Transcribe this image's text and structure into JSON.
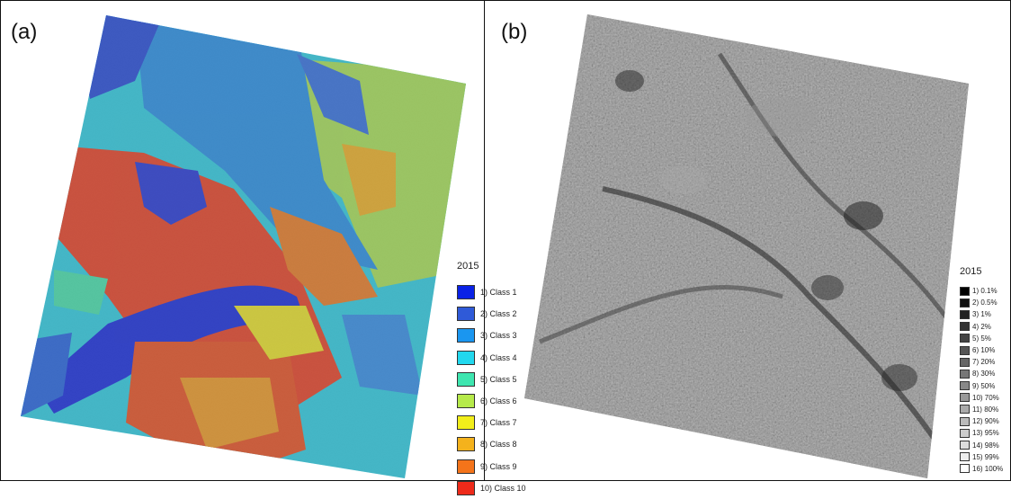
{
  "panels": [
    {
      "label": "(a)",
      "legend_title": "2015",
      "legend": [
        {
          "label": "1) Class 1",
          "color": "#0a22e6"
        },
        {
          "label": "2) Class 2",
          "color": "#2f5ad8"
        },
        {
          "label": "3) Class 3",
          "color": "#1a96f0"
        },
        {
          "label": "4) Class 4",
          "color": "#22d8ee"
        },
        {
          "label": "5) Class 5",
          "color": "#3ee6b0"
        },
        {
          "label": "6) Class 6",
          "color": "#b6ea4a"
        },
        {
          "label": "7) Class 7",
          "color": "#f2ee1a"
        },
        {
          "label": "8) Class 8",
          "color": "#f4b21c"
        },
        {
          "label": "9) Class 9",
          "color": "#f4741a"
        },
        {
          "label": "10) Class 10",
          "color": "#ee2a1a"
        }
      ]
    },
    {
      "label": "(b)",
      "legend_title": "2015",
      "legend": [
        {
          "label": "1) 0.1%",
          "color": "#000000"
        },
        {
          "label": "2) 0.5%",
          "color": "#111111"
        },
        {
          "label": "3) 1%",
          "color": "#222222"
        },
        {
          "label": "4) 2%",
          "color": "#333333"
        },
        {
          "label": "5) 5%",
          "color": "#444444"
        },
        {
          "label": "6) 10%",
          "color": "#555555"
        },
        {
          "label": "7) 20%",
          "color": "#666666"
        },
        {
          "label": "8) 30%",
          "color": "#777777"
        },
        {
          "label": "9) 50%",
          "color": "#888888"
        },
        {
          "label": "10) 70%",
          "color": "#999999"
        },
        {
          "label": "11) 80%",
          "color": "#aaaaaa"
        },
        {
          "label": "12) 90%",
          "color": "#bbbbbb"
        },
        {
          "label": "13) 95%",
          "color": "#cccccc"
        },
        {
          "label": "14) 98%",
          "color": "#dddddd"
        },
        {
          "label": "15) 99%",
          "color": "#eeeeee"
        },
        {
          "label": "16) 100%",
          "color": "#ffffff"
        }
      ]
    }
  ]
}
